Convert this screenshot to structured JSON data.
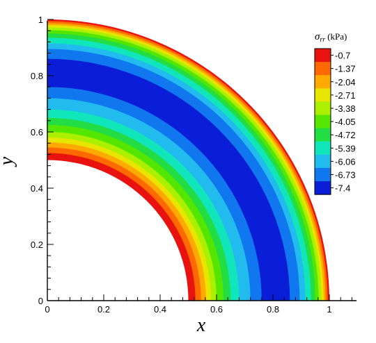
{
  "chart_data": {
    "type": "heatmap",
    "subtype": "filled-contour (quarter annulus)",
    "xlabel": "x",
    "ylabel": "y",
    "xlim": [
      0,
      1.09
    ],
    "ylim": [
      0,
      1
    ],
    "x_ticks": [
      "0",
      "0.2",
      "0.4",
      "0.6",
      "0.8",
      "1"
    ],
    "y_ticks": [
      "0",
      "0.2",
      "0.4",
      "0.6",
      "0.8",
      "1"
    ],
    "domain": {
      "inner_radius": 0.5,
      "outer_radius": 1.0
    },
    "colorbar": {
      "title_main": "σ",
      "title_sub": "rr",
      "title_unit": "(kPa)",
      "levels": [
        "-0.7",
        "-1.37",
        "-2.04",
        "-2.71",
        "-3.38",
        "-4.05",
        "-4.72",
        "-5.39",
        "-6.06",
        "-6.73",
        "-7.4"
      ],
      "colors": [
        "#e8120e",
        "#ff6a00",
        "#ffaa00",
        "#e8e600",
        "#aaf000",
        "#55e600",
        "#22dd44",
        "#11e6bb",
        "#22bbee",
        "#1177ee",
        "#0a1ed8"
      ]
    },
    "bands": [
      {
        "r0": 0.5,
        "r1": 0.525,
        "level": 0
      },
      {
        "r0": 0.525,
        "r1": 0.545,
        "level": 1
      },
      {
        "r0": 0.545,
        "r1": 0.563,
        "level": 2
      },
      {
        "r0": 0.563,
        "r1": 0.58,
        "level": 3
      },
      {
        "r0": 0.58,
        "r1": 0.6,
        "level": 4
      },
      {
        "r0": 0.6,
        "r1": 0.625,
        "level": 5
      },
      {
        "r0": 0.625,
        "r1": 0.65,
        "level": 6
      },
      {
        "r0": 0.65,
        "r1": 0.68,
        "level": 7
      },
      {
        "r0": 0.68,
        "r1": 0.72,
        "level": 8
      },
      {
        "r0": 0.72,
        "r1": 0.76,
        "level": 9
      },
      {
        "r0": 0.76,
        "r1": 0.86,
        "level": 10
      },
      {
        "r0": 0.86,
        "r1": 0.895,
        "level": 9
      },
      {
        "r0": 0.895,
        "r1": 0.915,
        "level": 8
      },
      {
        "r0": 0.915,
        "r1": 0.935,
        "level": 7
      },
      {
        "r0": 0.935,
        "r1": 0.95,
        "level": 6
      },
      {
        "r0": 0.95,
        "r1": 0.962,
        "level": 5
      },
      {
        "r0": 0.962,
        "r1": 0.972,
        "level": 4
      },
      {
        "r0": 0.972,
        "r1": 0.98,
        "level": 3
      },
      {
        "r0": 0.98,
        "r1": 0.987,
        "level": 2
      },
      {
        "r0": 0.987,
        "r1": 0.994,
        "level": 1
      },
      {
        "r0": 0.994,
        "r1": 1.0,
        "level": 0
      }
    ],
    "grid": false,
    "legend_position": "top-right"
  }
}
